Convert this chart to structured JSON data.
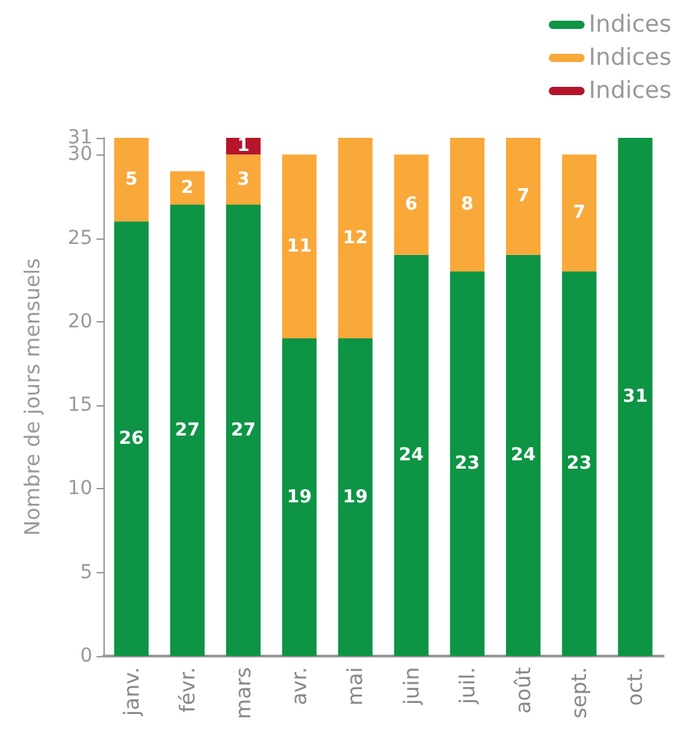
{
  "chart_data": {
    "type": "bar",
    "stacked": true,
    "ylabel": "Nombre de jours mensuels",
    "categories": [
      "janv.",
      "févr.",
      "mars",
      "avr.",
      "mai",
      "juin",
      "juil.",
      "août",
      "sept.",
      "oct."
    ],
    "series": [
      {
        "name": "Indices",
        "color": "#0d9444",
        "values": [
          26,
          27,
          27,
          19,
          19,
          24,
          23,
          24,
          23,
          31
        ]
      },
      {
        "name": "Indices",
        "color": "#f9a83a",
        "values": [
          5,
          2,
          3,
          11,
          12,
          6,
          8,
          7,
          7,
          null
        ]
      },
      {
        "name": "Indices",
        "color": "#b5152b",
        "values": [
          null,
          null,
          1,
          null,
          null,
          null,
          null,
          null,
          null,
          null
        ]
      }
    ],
    "ylim": [
      0,
      31
    ],
    "yticks": [
      0,
      5,
      10,
      15,
      20,
      25,
      30,
      31
    ],
    "data_labels": true,
    "grid": false,
    "legend": "top right"
  }
}
